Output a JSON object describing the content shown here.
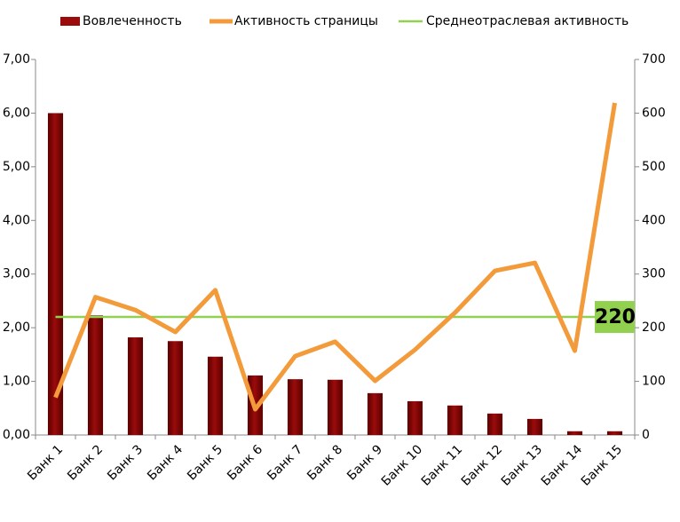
{
  "chart_data": {
    "type": "bar_line",
    "categories": [
      "Банк 1",
      "Банк 2",
      "Банк 3",
      "Банк 4",
      "Банк 5",
      "Банк 6",
      "Банк 7",
      "Банк 8",
      "Банк 9",
      "Банк 10",
      "Банк 11",
      "Банк 12",
      "Банк 13",
      "Банк 14",
      "Банк 15"
    ],
    "series": [
      {
        "name": "Вовлеченность",
        "color": "#9b0b0b",
        "type": "bar",
        "values": [
          6.0,
          2.23,
          1.82,
          1.75,
          1.46,
          1.11,
          1.04,
          1.03,
          0.78,
          0.63,
          0.55,
          0.4,
          0.3,
          0.07,
          0.07
        ]
      },
      {
        "name": "Активность страницы",
        "color": "#f39a3b",
        "type": "line",
        "axis": "y2",
        "values": [
          70,
          257,
          233,
          192,
          270,
          48,
          147,
          174,
          101,
          159,
          228,
          306,
          321,
          157,
          619
        ]
      }
    ],
    "reference": {
      "name": "Среднеотраслевая активность",
      "color": "#92d050",
      "axis": "y2",
      "value": 220
    },
    "ylim": [
      0,
      7
    ],
    "yticks": [
      {
        "value": 0,
        "label": "0,00"
      },
      {
        "value": 1,
        "label": "1,00"
      },
      {
        "value": 2,
        "label": "2,00"
      },
      {
        "value": 3,
        "label": "3,00"
      },
      {
        "value": 4,
        "label": "4,00"
      },
      {
        "value": 5,
        "label": "5,00"
      },
      {
        "value": 6,
        "label": "6,00"
      },
      {
        "value": 7,
        "label": "7,00"
      }
    ],
    "y2lim": [
      0,
      700
    ],
    "y2ticks": [
      0,
      100,
      200,
      300,
      400,
      500,
      600,
      700
    ]
  }
}
